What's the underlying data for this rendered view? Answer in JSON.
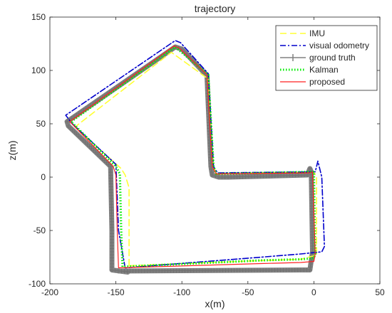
{
  "chart_data": {
    "type": "line",
    "title": "trajectory",
    "xlabel": "x(m)",
    "ylabel": "z(m)",
    "xlim": [
      -200,
      50
    ],
    "ylim": [
      -100,
      150
    ],
    "xticks": [
      -200,
      -150,
      -100,
      -50,
      0,
      50
    ],
    "yticks": [
      -100,
      -50,
      0,
      50,
      100,
      150
    ],
    "xtick_labels": [
      "-200",
      "-150",
      "-100",
      "-50",
      "0",
      "50"
    ],
    "ytick_labels": [
      "-100",
      "-50",
      "0",
      "50",
      "100",
      "150"
    ],
    "grid": false,
    "legend_position": "top-right",
    "series": [
      {
        "name": "IMU",
        "color": "#ffff33",
        "style": "dashed",
        "x": [
          -140,
          -140,
          -143,
          -146,
          -181,
          -108,
          -80,
          -76,
          -74,
          0,
          2,
          2,
          -10,
          -35,
          -140
        ],
        "y": [
          -83,
          -10,
          2,
          8,
          47,
          117,
          92,
          10,
          3,
          5,
          0,
          -73,
          -77,
          -78,
          -83
        ]
      },
      {
        "name": "visual odometry",
        "color": "#0000cc",
        "style": "dashdot",
        "x": [
          -143,
          -148,
          -150,
          -183,
          -188,
          -105,
          -101,
          -80,
          -76,
          -73,
          1,
          3,
          6,
          8,
          6,
          -10,
          -40,
          -143
        ],
        "y": [
          -85,
          -50,
          12,
          50,
          58,
          128,
          126,
          97,
          10,
          4,
          5,
          15,
          0,
          -65,
          -70,
          -72,
          -75,
          -85
        ],
        "markers": false
      },
      {
        "name": "ground truth",
        "color": "#808080",
        "style": "solid-thick-marked",
        "x": [
          -141,
          -153,
          -153,
          -154,
          -186,
          -187,
          -105,
          -100,
          -81,
          -78,
          -77,
          -72,
          -65,
          -5,
          -3,
          -2,
          -1,
          -3,
          -10,
          -148
        ],
        "y": [
          -89,
          -87,
          -50,
          10,
          48,
          52,
          122,
          120,
          95,
          10,
          2,
          0,
          0,
          2,
          8,
          5,
          -70,
          -87,
          -87,
          -88
        ]
      },
      {
        "name": "Kalman",
        "color": "#00ee00",
        "style": "dotted",
        "x": [
          -145,
          -146,
          -147,
          -150,
          -184,
          -105,
          -80,
          -76,
          -74,
          -1,
          0,
          1,
          0,
          -10,
          -40,
          -145
        ],
        "y": [
          -84,
          -50,
          3,
          10,
          52,
          122,
          96,
          10,
          3,
          5,
          5,
          -72,
          -76,
          -77,
          -78,
          -84
        ]
      },
      {
        "name": "proposed",
        "color": "#ff2222",
        "style": "solid",
        "x": [
          -148,
          -149,
          -150,
          -152,
          -185,
          -106,
          -102,
          -81,
          -77,
          -74,
          -3,
          -1,
          1,
          0,
          -10,
          -40,
          -148
        ],
        "y": [
          -85,
          -50,
          2,
          10,
          52,
          123,
          121,
          96,
          10,
          3,
          4,
          5,
          -72,
          -79,
          -80,
          -81,
          -85
        ]
      }
    ]
  }
}
